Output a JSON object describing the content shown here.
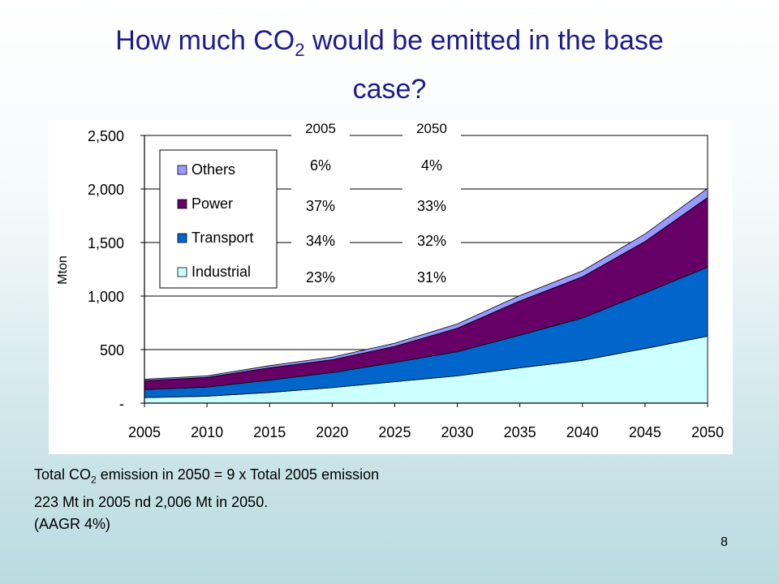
{
  "title": {
    "prefix": "How much CO",
    "sub": "2",
    "suffix": " would be emitted in the base",
    "line2": "case?"
  },
  "summary": {
    "line1_prefix": "Total CO",
    "line1_sub": "2",
    "line1_suffix": " emission in 2050 = 9 x Total 2005 emission",
    "line2": "223 Mt in 2005 nd 2,006 Mt in 2050.",
    "line3": "(AAGR  4%)"
  },
  "page_number": "8",
  "colors": {
    "Industrial": "#ccffff",
    "Transport": "#0066cc",
    "Power": "#660066",
    "Others": "#9999ff"
  },
  "chart_data": {
    "type": "area",
    "stacked": true,
    "ylabel": "Mton",
    "xlabel": "",
    "x": [
      "2005",
      "2010",
      "2015",
      "2020",
      "2025",
      "2030",
      "2035",
      "2040",
      "2045",
      "2050"
    ],
    "x_tick_labels": [
      "2005",
      "2010",
      "2015",
      "2020",
      "2025",
      "2030",
      "2035",
      "2040",
      "2045",
      "2050"
    ],
    "y_ticks": [
      0,
      500,
      1000,
      1500,
      2000,
      2500
    ],
    "y_tick_labels": [
      "-",
      "500",
      "1,000",
      "1,500",
      "2,000",
      "2,500"
    ],
    "ylim": [
      0,
      2500
    ],
    "series": [
      {
        "name": "Industrial",
        "values": [
          51,
          65,
          100,
          145,
          200,
          255,
          330,
          400,
          510,
          625
        ]
      },
      {
        "name": "Transport",
        "values": [
          76,
          85,
          115,
          140,
          180,
          225,
          305,
          395,
          520,
          645
        ]
      },
      {
        "name": "Power",
        "values": [
          83,
          90,
          115,
          120,
          150,
          220,
          320,
          385,
          480,
          650
        ]
      },
      {
        "name": "Others",
        "values": [
          13,
          15,
          20,
          25,
          30,
          40,
          50,
          55,
          70,
          86
        ]
      }
    ],
    "legend": {
      "position": "upper-left",
      "order": [
        "Others",
        "Power",
        "Transport",
        "Industrial"
      ]
    },
    "share_boxes": [
      {
        "year": "2005",
        "others": "6%",
        "power": "37%",
        "transport": "34%",
        "industrial": "23%"
      },
      {
        "year": "2050",
        "others": "4%",
        "power": "33%",
        "transport": "32%",
        "industrial": "31%"
      }
    ]
  }
}
